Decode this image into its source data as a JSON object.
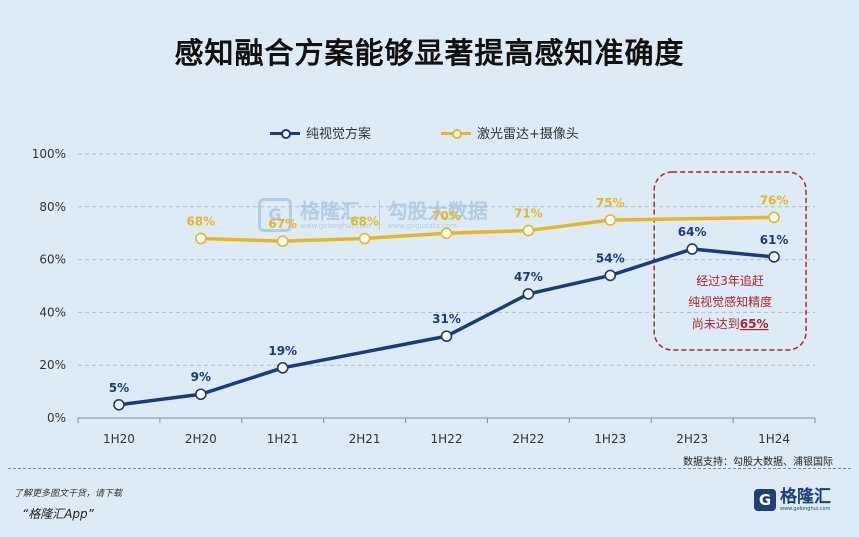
{
  "title": "感知融合方案能够显著提高感知准确度",
  "source": "数据支持：勾股大数据、浦银国际",
  "footer": {
    "note": "了解更多图文干货，请下载",
    "app": "“格隆汇App”",
    "logo_text": "格隆汇",
    "logo_url": "www.gelonghui.com"
  },
  "watermark": {
    "brand": "格隆汇",
    "brand_url": "www.gelonghui.com",
    "partner": "勾股大数据",
    "partner_url": "www.gogudata.com"
  },
  "annotation": {
    "line1": "经过3年追赶",
    "line2": "纯视觉感知精度",
    "line3_prefix": "尚未达到",
    "line3_highlight": "65%"
  },
  "colors": {
    "vision": "#1d3a7c",
    "fusion": "#e5b823",
    "annotation": "#b4232b",
    "grid": "#a9bfce"
  },
  "chart_data": {
    "type": "line",
    "categories": [
      "1H20",
      "2H20",
      "1H21",
      "2H21",
      "1H22",
      "2H22",
      "1H23",
      "2H23",
      "1H24"
    ],
    "ylim": [
      0,
      100
    ],
    "yticks": [
      "0%",
      "20%",
      "40%",
      "60%",
      "80%",
      "100%"
    ],
    "grid": true,
    "legend_position": "top",
    "series": [
      {
        "name": "纯视觉方案",
        "values": [
          5,
          9,
          19,
          null,
          31,
          47,
          54,
          64,
          61
        ],
        "labels": [
          "5%",
          "9%",
          "19%",
          null,
          "31%",
          "47%",
          "54%",
          "64%",
          "61%"
        ]
      },
      {
        "name": "激光雷达+摄像头",
        "values": [
          null,
          68,
          67,
          68,
          70,
          71,
          75,
          null,
          76
        ],
        "labels": [
          null,
          "68%",
          "67%",
          "68%",
          "70%",
          "71%",
          "75%",
          null,
          "76%"
        ]
      }
    ]
  }
}
